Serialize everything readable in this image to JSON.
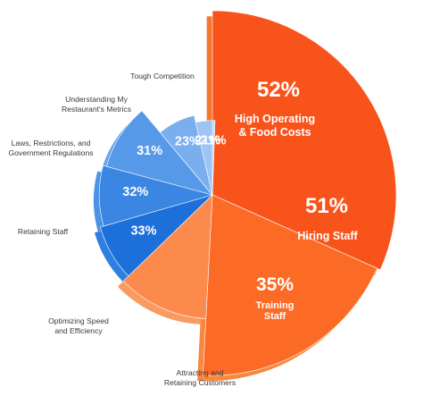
{
  "chart_data": {
    "type": "pie",
    "title": "",
    "slices": [
      {
        "label": "High Operating & Food Costs",
        "label_lines": [
          "High Operating",
          "& Food Costs"
        ],
        "value": 52,
        "value_label": "52%",
        "color": "#f9531c",
        "side_color": "#f4772f",
        "label_position": "inside"
      },
      {
        "label": "Hiring Staff",
        "label_lines": [
          "Hiring Staff"
        ],
        "value": 51,
        "value_label": "51%",
        "color": "#fb6b26",
        "side_color": "#f7883f",
        "label_position": "inside"
      },
      {
        "label": "Training Staff",
        "label_lines": [
          "Training",
          "Staff"
        ],
        "value": 35,
        "value_label": "35%",
        "color": "#fc8a4c",
        "side_color": "#f99a60",
        "label_position": "inside"
      },
      {
        "label": "Attracting and Retaining Customers",
        "label_lines": [
          "Attracting and",
          "Retaining Customers"
        ],
        "value": 33,
        "value_label": "33%",
        "color": "#1d6fd9",
        "side_color": "#2f7fe0",
        "label_position": "outside"
      },
      {
        "label": "Optimizing Speed and Efficiency",
        "label_lines": [
          "Optimizing Speed",
          "and Efficiency"
        ],
        "value": 32,
        "value_label": "32%",
        "color": "#3a86e2",
        "side_color": "#4b93e6",
        "label_position": "outside"
      },
      {
        "label": "Retaining Staff",
        "label_lines": [
          "Retaining Staff"
        ],
        "value": 31,
        "value_label": "31%",
        "color": "#5699e8",
        "side_color": "#66a5ec",
        "label_position": "outside"
      },
      {
        "label": "Laws, Restrictions, and Government Regulations",
        "label_lines": [
          "Laws, Restrictions, and",
          "Government Regulations"
        ],
        "value": 23,
        "value_label": "23%",
        "color": "#7aaeee",
        "side_color": "#8bbaf1",
        "label_position": "outside"
      },
      {
        "label": "Understanding My Restaurant's Metrics",
        "label_lines": [
          "Understanding My",
          "Restaurant's Metrics"
        ],
        "value": 21,
        "value_label": "21%",
        "color": "#9dc4f3",
        "side_color": "#adcff5",
        "label_position": "outside"
      },
      {
        "label": "Tough Competition",
        "label_lines": [
          "Tough Competition"
        ],
        "value": 21,
        "value_label": "21%",
        "color": "#bcd7f7",
        "side_color": "#c9dff8",
        "label_position": "outside"
      }
    ],
    "start_angle": "12 o'clock",
    "direction": "clockwise",
    "legend": "none"
  }
}
